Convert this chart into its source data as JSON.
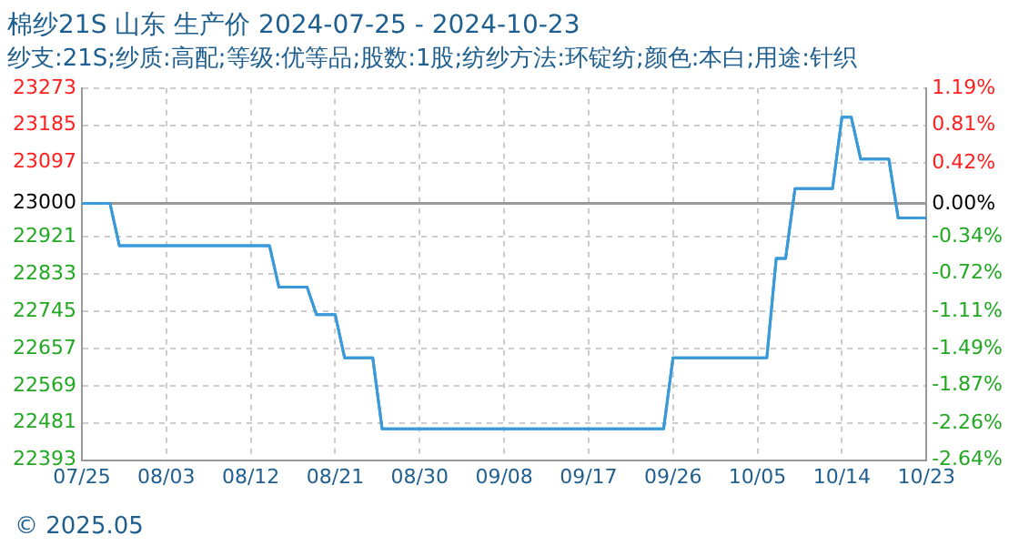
{
  "chart_data": {
    "type": "line",
    "title": "棉纱21S 山东 生产价 2024-07-25 - 2024-10-23",
    "subtitle": "纱支:21S;纱质:高配;等级:优等品;股数:1股;纺纱方法:环锭纺;颜色:本白;用途:针织",
    "annotations": [
      "© 2025.05"
    ],
    "series": [
      {
        "color": "#3a9ad9",
        "x": [
          "2024-07-25",
          "2024-07-28",
          "2024-07-29",
          "2024-08-14",
          "2024-08-15",
          "2024-08-18",
          "2024-08-19",
          "2024-08-21",
          "2024-08-22",
          "2024-08-25",
          "2024-08-26",
          "2024-09-25",
          "2024-09-26",
          "2024-10-06",
          "2024-10-07",
          "2024-10-08",
          "2024-10-09",
          "2024-10-13",
          "2024-10-14",
          "2024-10-15",
          "2024-10-16",
          "2024-10-19",
          "2024-10-20",
          "2024-10-23"
        ],
        "values": [
          23000,
          23000,
          22900,
          22900,
          22802,
          22802,
          22737,
          22737,
          22635,
          22635,
          22467,
          22467,
          22635,
          22635,
          22870,
          22870,
          23035,
          23035,
          23204,
          23204,
          23105,
          23105,
          22966,
          22966
        ]
      }
    ],
    "xlim": [
      "2024-07-25",
      "2024-10-23"
    ],
    "xticks": [
      {
        "value": "2024-07-25",
        "label": "07/25"
      },
      {
        "value": "2024-08-03",
        "label": "08/03"
      },
      {
        "value": "2024-08-12",
        "label": "08/12"
      },
      {
        "value": "2024-08-21",
        "label": "08/21"
      },
      {
        "value": "2024-08-30",
        "label": "08/30"
      },
      {
        "value": "2024-09-08",
        "label": "09/08"
      },
      {
        "value": "2024-09-17",
        "label": "09/17"
      },
      {
        "value": "2024-09-26",
        "label": "09/26"
      },
      {
        "value": "2024-10-05",
        "label": "10/05"
      },
      {
        "value": "2024-10-14",
        "label": "10/14"
      },
      {
        "value": "2024-10-23",
        "label": "10/23"
      }
    ],
    "ylim": [
      22393,
      23273
    ],
    "yticks": [
      22393,
      22481,
      22569,
      22657,
      22745,
      22833,
      22921,
      23000,
      23097,
      23185,
      23273
    ],
    "y2lim": [
      -2.64,
      1.19
    ],
    "y2ticks": [
      {
        "value": -2.64,
        "label": "-2.64%"
      },
      {
        "value": -2.26,
        "label": "-2.26%"
      },
      {
        "value": -1.87,
        "label": "-1.87%"
      },
      {
        "value": -1.49,
        "label": "-1.49%"
      },
      {
        "value": -1.11,
        "label": "-1.11%"
      },
      {
        "value": -0.72,
        "label": "-0.72%"
      },
      {
        "value": -0.34,
        "label": "-0.34%"
      },
      {
        "value": 0,
        "label": "0.00%"
      },
      {
        "value": 0.42,
        "label": "0.42%"
      },
      {
        "value": 0.81,
        "label": "0.81%"
      },
      {
        "value": 1.19,
        "label": "1.19%"
      }
    ],
    "ref_lines": [
      {
        "axis": "y",
        "value": 23000,
        "color": "#999999"
      }
    ],
    "grid": true,
    "legend": false,
    "marker": "none",
    "line_style": "solid"
  }
}
